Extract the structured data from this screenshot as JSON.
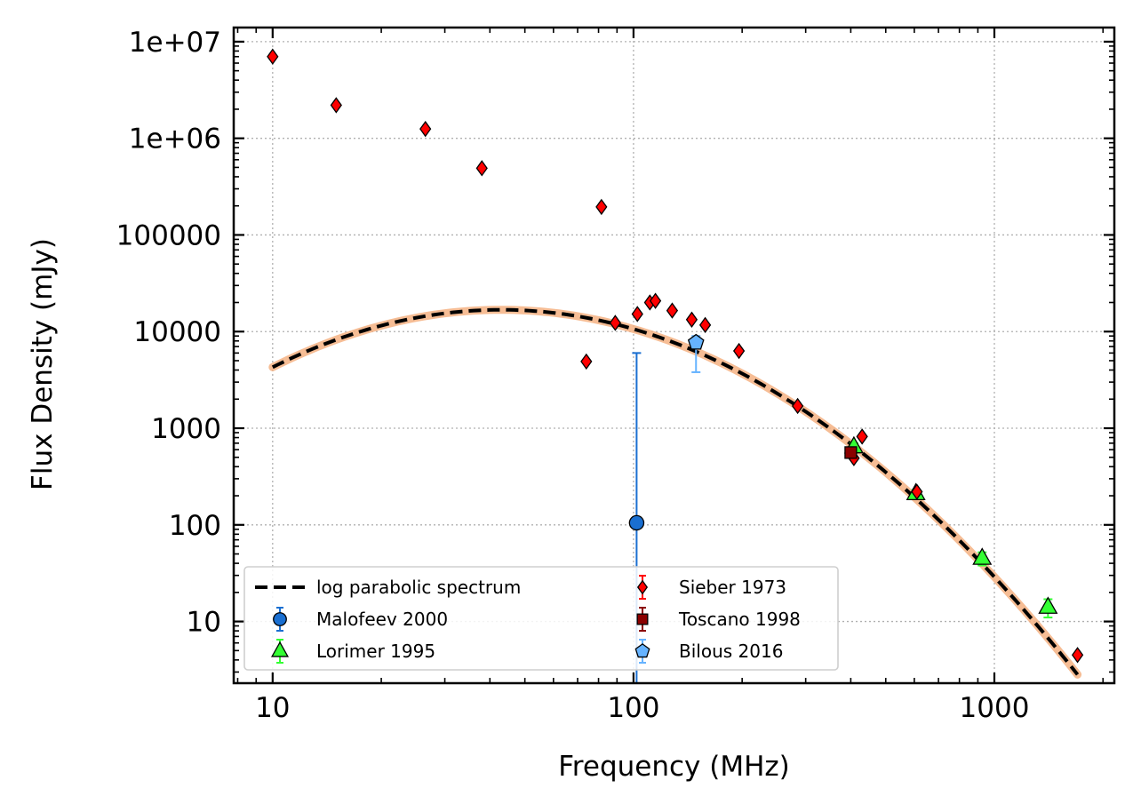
{
  "chart_data": {
    "type": "scatter",
    "title": "",
    "xlabel": "Frequency (MHz)",
    "ylabel": "Flux Density (mJy)",
    "x_scale": "log",
    "y_scale": "log",
    "xlim": [
      7.8,
      2150
    ],
    "ylim": [
      2.3,
      14000000
    ],
    "grid": true,
    "legend_position": "lower-left",
    "x_ticks": [
      {
        "value": 10,
        "label": "10"
      },
      {
        "value": 100,
        "label": "100"
      },
      {
        "value": 1000,
        "label": "1000"
      }
    ],
    "y_ticks": [
      {
        "value": 10,
        "label": "10"
      },
      {
        "value": 100,
        "label": "100"
      },
      {
        "value": 1000,
        "label": "1000"
      },
      {
        "value": 10000,
        "label": "10000"
      },
      {
        "value": 100000,
        "label": "100000"
      },
      {
        "value": 1000000,
        "label": "1e+06"
      },
      {
        "value": 10000000,
        "label": "1e+07"
      }
    ],
    "fit": {
      "name": "log parabolic spectrum",
      "style": "dashed",
      "color": "#000000",
      "band_color": "#f4b183",
      "peak_frequency": 43,
      "peak_flux": 16800,
      "curvature": -1.48,
      "x_range": [
        10,
        1700
      ]
    },
    "series": [
      {
        "name": "Malofeev 2000",
        "marker": "circle",
        "color": "#1a6fd1",
        "points": [
          {
            "x": 102,
            "y": 105,
            "yerr_low": 2.3,
            "yerr_high": 6000
          }
        ]
      },
      {
        "name": "Lorimer 1995",
        "marker": "triangle",
        "color": "#33ff33",
        "points": [
          {
            "x": 408,
            "y": 640,
            "yerr_low": 580,
            "yerr_high": 700
          },
          {
            "x": 606,
            "y": 210,
            "yerr_low": 190,
            "yerr_high": 230
          },
          {
            "x": 925,
            "y": 45,
            "yerr_low": 38,
            "yerr_high": 52
          },
          {
            "x": 1408,
            "y": 14,
            "yerr_low": 11,
            "yerr_high": 17
          }
        ]
      },
      {
        "name": "Sieber 1973",
        "marker": "diamond",
        "color": "#ff0000",
        "points": [
          {
            "x": 10,
            "y": 7000000
          },
          {
            "x": 15,
            "y": 2200000
          },
          {
            "x": 26.5,
            "y": 1250000
          },
          {
            "x": 38,
            "y": 490000
          },
          {
            "x": 74,
            "y": 4900
          },
          {
            "x": 81.5,
            "y": 195000
          },
          {
            "x": 89,
            "y": 12300
          },
          {
            "x": 102.5,
            "y": 15200
          },
          {
            "x": 111,
            "y": 20000
          },
          {
            "x": 115,
            "y": 20800
          },
          {
            "x": 128,
            "y": 16500
          },
          {
            "x": 145,
            "y": 13300
          },
          {
            "x": 158,
            "y": 11700
          },
          {
            "x": 196,
            "y": 6300
          },
          {
            "x": 285,
            "y": 1700
          },
          {
            "x": 408,
            "y": 490
          },
          {
            "x": 430,
            "y": 820
          },
          {
            "x": 610,
            "y": 220
          },
          {
            "x": 1700,
            "y": 4.5
          }
        ]
      },
      {
        "name": "Toscano 1998",
        "marker": "square",
        "color": "#8b0000",
        "points": [
          {
            "x": 400,
            "y": 560,
            "yerr_low": 520,
            "yerr_high": 600
          }
        ]
      },
      {
        "name": "Bilous 2016",
        "marker": "pentagon",
        "color": "#66b3ff",
        "points": [
          {
            "x": 149,
            "y": 7700,
            "yerr_low": 3800,
            "yerr_high": 9000
          }
        ]
      }
    ],
    "legend": [
      {
        "label": "log parabolic spectrum",
        "marker": "dash"
      },
      {
        "label": "Sieber 1973",
        "marker": "diamond"
      },
      {
        "label": "Malofeev 2000",
        "marker": "circle"
      },
      {
        "label": "Toscano 1998",
        "marker": "square"
      },
      {
        "label": "Lorimer 1995",
        "marker": "triangle"
      },
      {
        "label": "Bilous 2016",
        "marker": "pentagon"
      }
    ]
  }
}
